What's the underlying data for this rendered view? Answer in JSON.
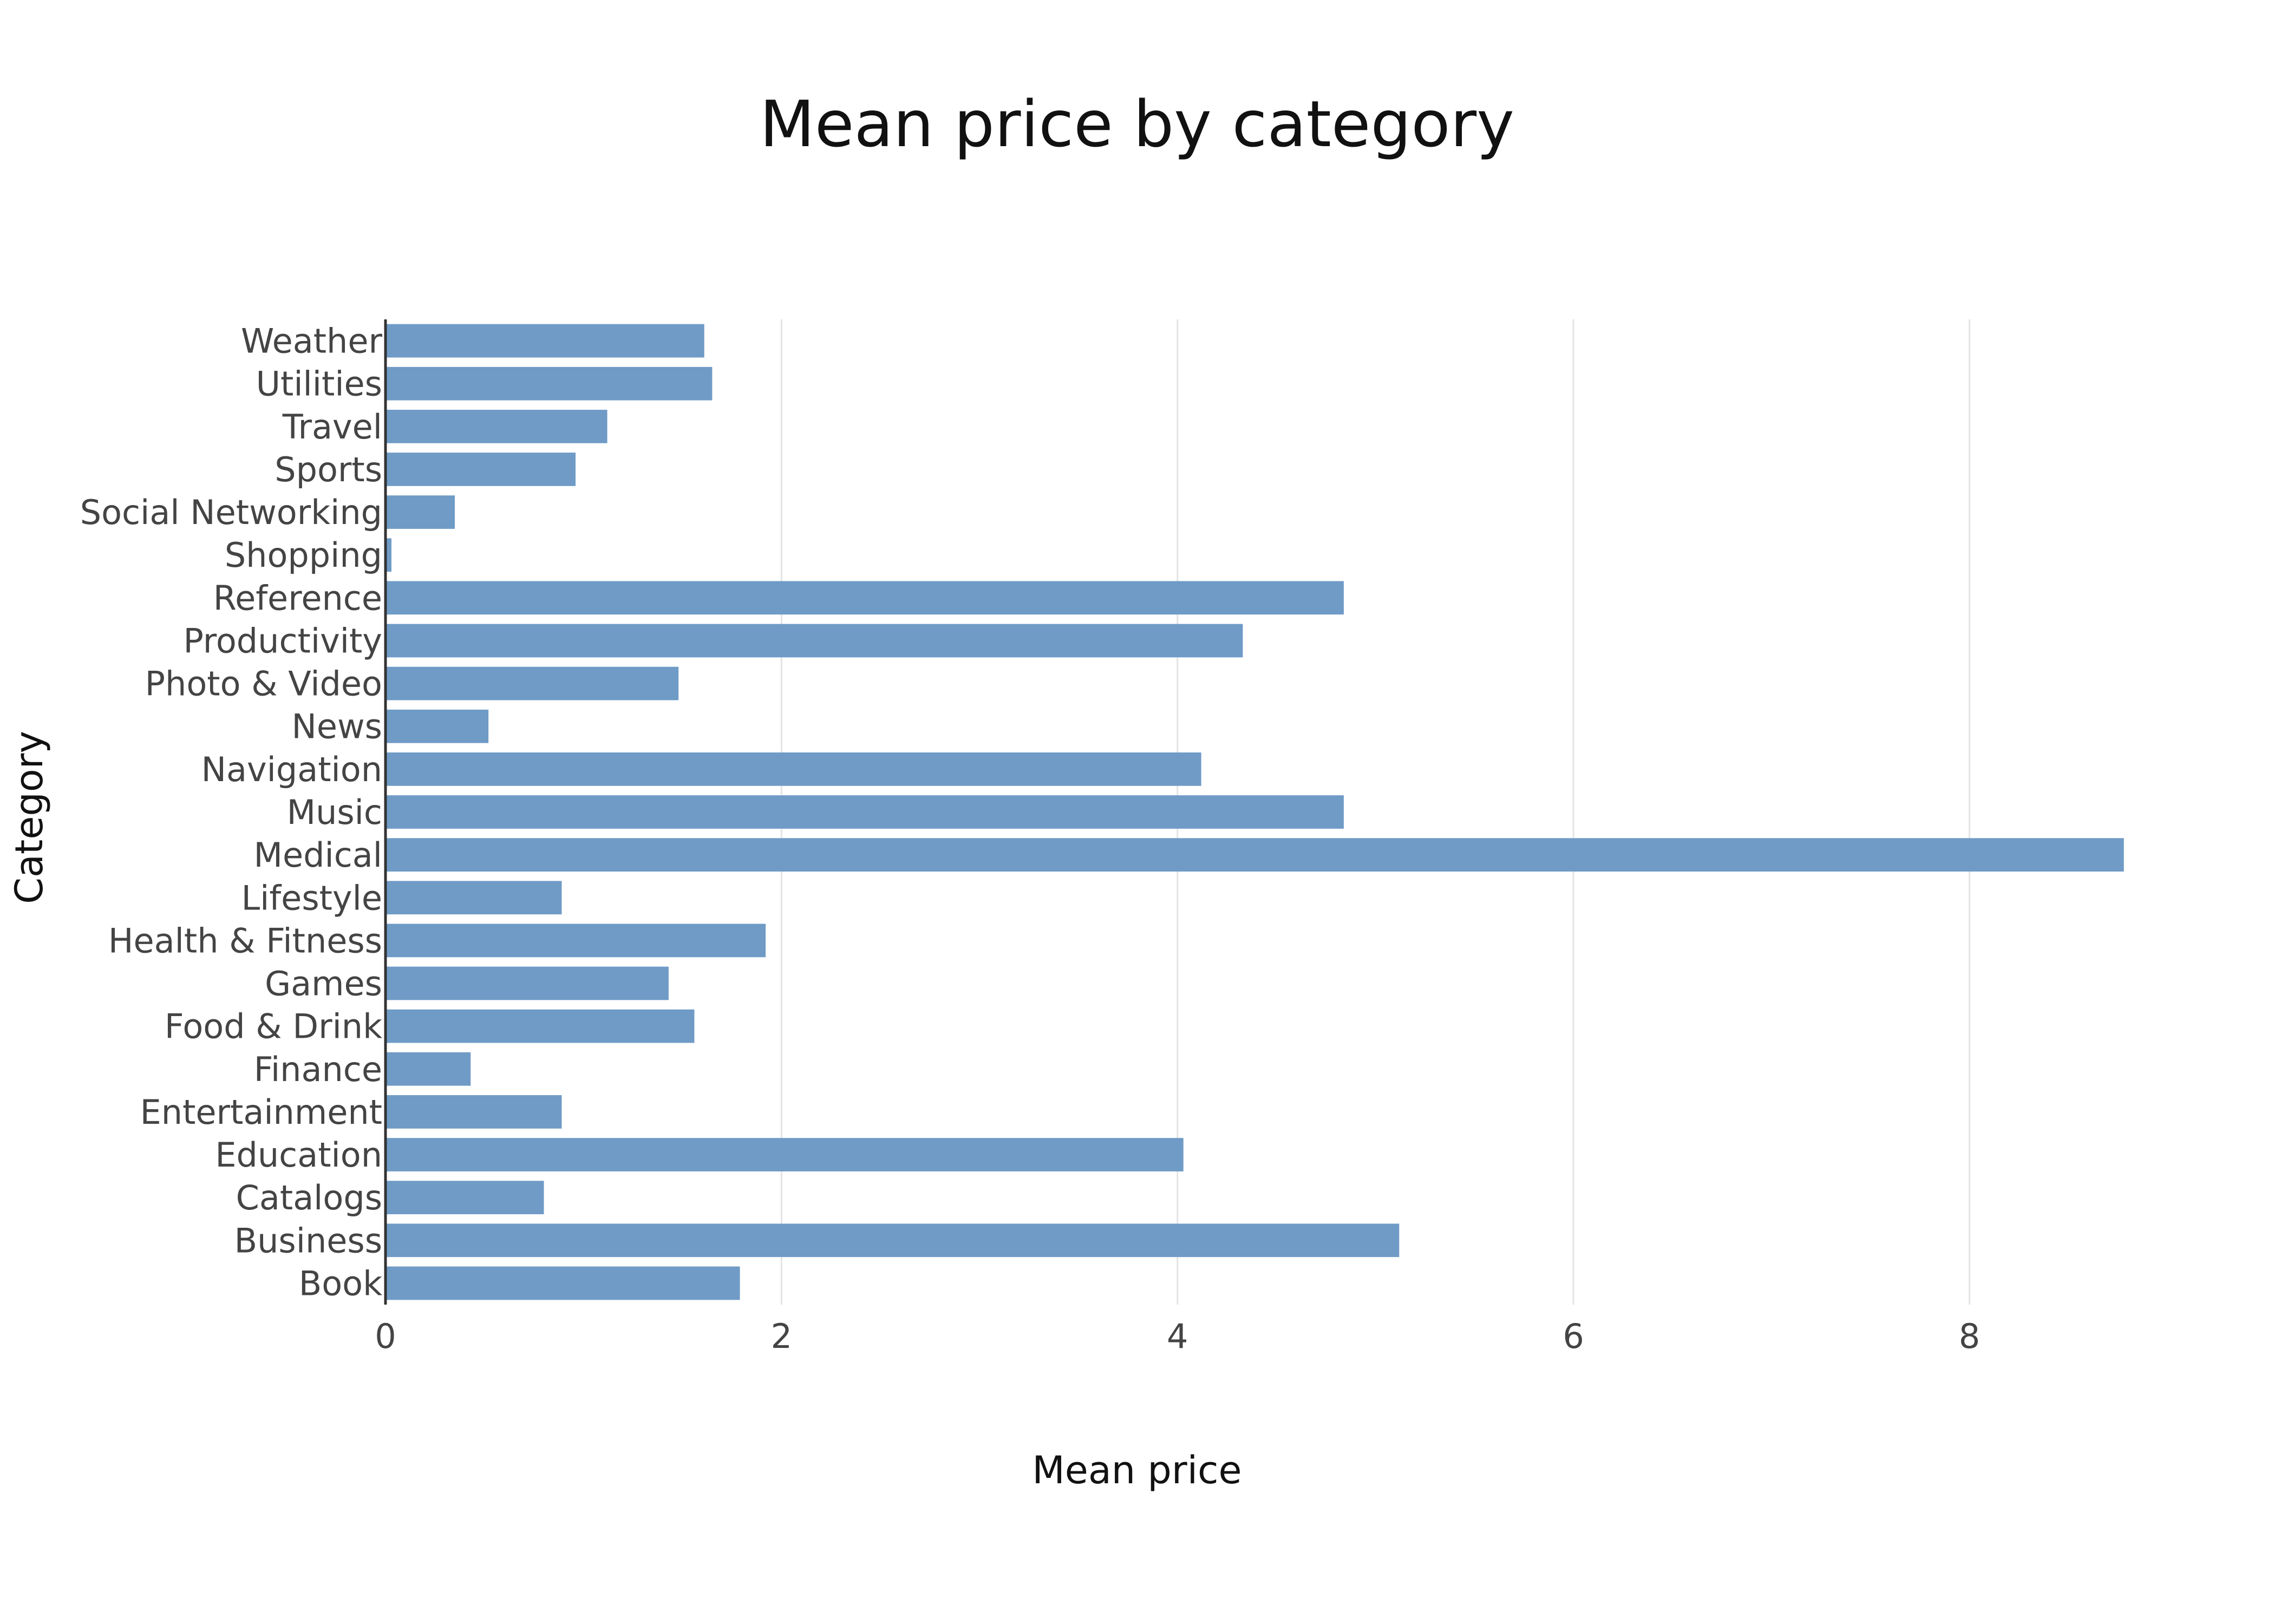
{
  "chart_data": {
    "type": "bar",
    "orientation": "horizontal",
    "title": "Mean price by category",
    "xlabel": "Mean price",
    "ylabel": "Category",
    "xlim": [
      0,
      8.8
    ],
    "x_ticks": [
      0,
      2,
      4,
      6,
      8
    ],
    "grid": "vertical",
    "bar_color": "#6f9bc6",
    "categories": [
      "Weather",
      "Utilities",
      "Travel",
      "Sports",
      "Social Networking",
      "Shopping",
      "Reference",
      "Productivity",
      "Photo & Video",
      "News",
      "Navigation",
      "Music",
      "Medical",
      "Lifestyle",
      "Health & Fitness",
      "Games",
      "Food & Drink",
      "Finance",
      "Entertainment",
      "Education",
      "Catalogs",
      "Business",
      "Book"
    ],
    "values": [
      1.61,
      1.65,
      1.12,
      0.96,
      0.35,
      0.03,
      4.84,
      4.33,
      1.48,
      0.52,
      4.12,
      4.84,
      8.78,
      0.89,
      1.92,
      1.43,
      1.56,
      0.43,
      0.89,
      4.03,
      0.8,
      5.12,
      1.79
    ]
  }
}
